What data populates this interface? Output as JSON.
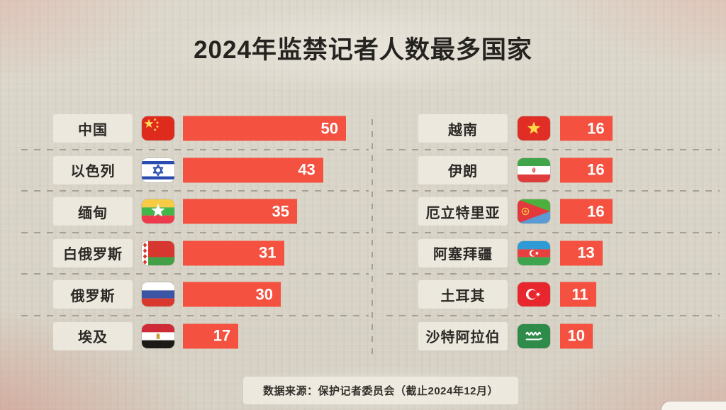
{
  "colors": {
    "bar": "#f45140",
    "background": "#d9d4c8",
    "label_box": "#eeeae0",
    "dash_line": "#938e82",
    "title_text": "#25231f",
    "value_text": "#ffffff"
  },
  "chart_data": {
    "type": "bar",
    "orientation": "horizontal",
    "title": "2024年监禁记者人数最多国家",
    "source": "数据来源：保护记者委员会（截止2024年12月）",
    "value_range": [
      0,
      50
    ],
    "grid": "dashed-row-separators",
    "legend": "none",
    "columns": [
      {
        "rows": [
          {
            "label": "中国",
            "flag": "china",
            "value": 50
          },
          {
            "label": "以色列",
            "flag": "israel",
            "value": 43
          },
          {
            "label": "缅甸",
            "flag": "myanmar",
            "value": 35
          },
          {
            "label": "白俄罗斯",
            "flag": "belarus",
            "value": 31
          },
          {
            "label": "俄罗斯",
            "flag": "russia",
            "value": 30
          },
          {
            "label": "埃及",
            "flag": "egypt",
            "value": 17
          }
        ]
      },
      {
        "rows": [
          {
            "label": "越南",
            "flag": "vietnam",
            "value": 16
          },
          {
            "label": "伊朗",
            "flag": "iran",
            "value": 16
          },
          {
            "label": "厄立特里亚",
            "flag": "eritrea",
            "value": 16
          },
          {
            "label": "阿塞拜疆",
            "flag": "azerbaijan",
            "value": 13
          },
          {
            "label": "土耳其",
            "flag": "turkey",
            "value": 11
          },
          {
            "label": "沙特阿拉伯",
            "flag": "saudi-arabia",
            "value": 10
          }
        ]
      }
    ]
  }
}
